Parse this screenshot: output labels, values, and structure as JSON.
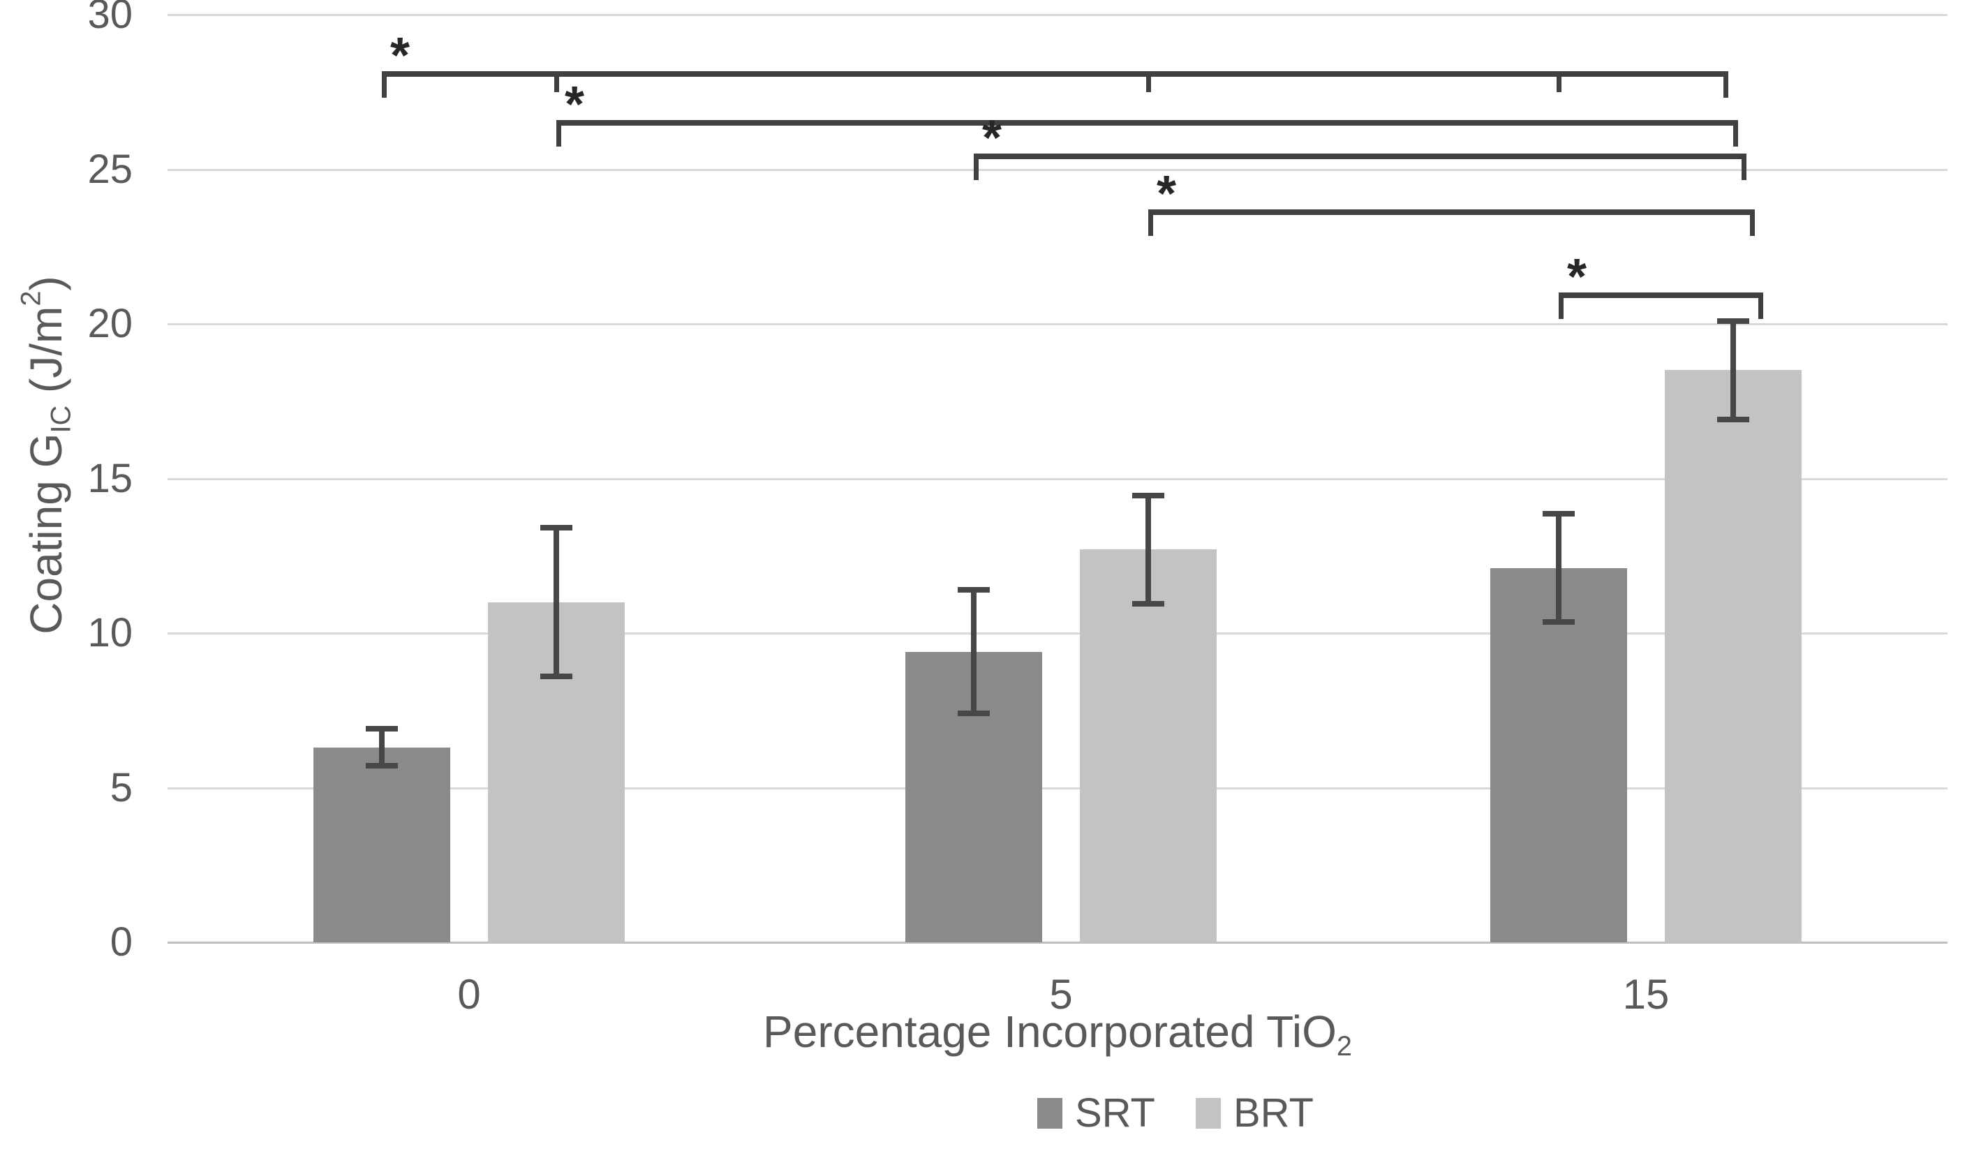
{
  "chart_data": {
    "type": "bar",
    "title": "",
    "xlabel": "Percentage Incorporated TiO2",
    "xlabel_parts": [
      {
        "t": "Percentage Incorporated TiO"
      },
      {
        "t": "2",
        "style": "sub"
      }
    ],
    "ylabel": "Coating GIC (J/m2)",
    "ylabel_parts": [
      {
        "t": "Coating G"
      },
      {
        "t": "IC",
        "style": "sub"
      },
      {
        "t": " (J/m"
      },
      {
        "t": "2",
        "style": "sup"
      },
      {
        "t": ")"
      }
    ],
    "categories": [
      "0",
      "5",
      "15"
    ],
    "series": [
      {
        "name": "SRT",
        "color": "#8a8a8a",
        "values": [
          6.3,
          9.4,
          12.1
        ],
        "errors": [
          0.6,
          2.0,
          1.75
        ]
      },
      {
        "name": "BRT",
        "color": "#c3c3c3",
        "values": [
          11.0,
          12.7,
          18.5
        ],
        "errors": [
          2.4,
          1.75,
          1.6
        ]
      }
    ],
    "ylim": [
      0,
      30
    ],
    "ytick_step": 5,
    "ytick_labels": [
      "0",
      "5",
      "10",
      "15",
      "20",
      "25",
      "30"
    ],
    "grid": "horizontal",
    "legend_position": "bottom-center",
    "significance_brackets": [
      {
        "label": "*",
        "from": {
          "series": 0,
          "category": 0
        },
        "to": {
          "series": 1,
          "category": 2
        },
        "teeth": [
          {
            "series": 1,
            "category": 0
          },
          {
            "series": 1,
            "category": 1
          },
          {
            "series": 0,
            "category": 2
          }
        ]
      },
      {
        "label": "*",
        "from": {
          "series": 1,
          "category": 0
        },
        "to": {
          "series": 1,
          "category": 2
        },
        "teeth": []
      },
      {
        "label": "*",
        "from": {
          "series": 0,
          "category": 1
        },
        "to": {
          "series": 1,
          "category": 2
        },
        "teeth": []
      },
      {
        "label": "*",
        "from": {
          "series": 1,
          "category": 1
        },
        "to": {
          "series": 1,
          "category": 2
        },
        "teeth": []
      },
      {
        "label": "*",
        "from": {
          "series": 0,
          "category": 2
        },
        "to": {
          "series": 1,
          "category": 2
        },
        "teeth": []
      }
    ]
  },
  "colors": {
    "background": "#ffffff",
    "gridline": "#d9d9d9",
    "axis_line": "#bfbfbf",
    "error_bar": "#474747",
    "bracket": "#404040",
    "asterisk": "#262626",
    "text": "#595959",
    "srt_fill": "#8a8a8a",
    "brt_fill": "#c3c3c3"
  },
  "legend": {
    "items": [
      {
        "label": "SRT",
        "color": "#8a8a8a"
      },
      {
        "label": "BRT",
        "color": "#c3c3c3"
      }
    ]
  }
}
